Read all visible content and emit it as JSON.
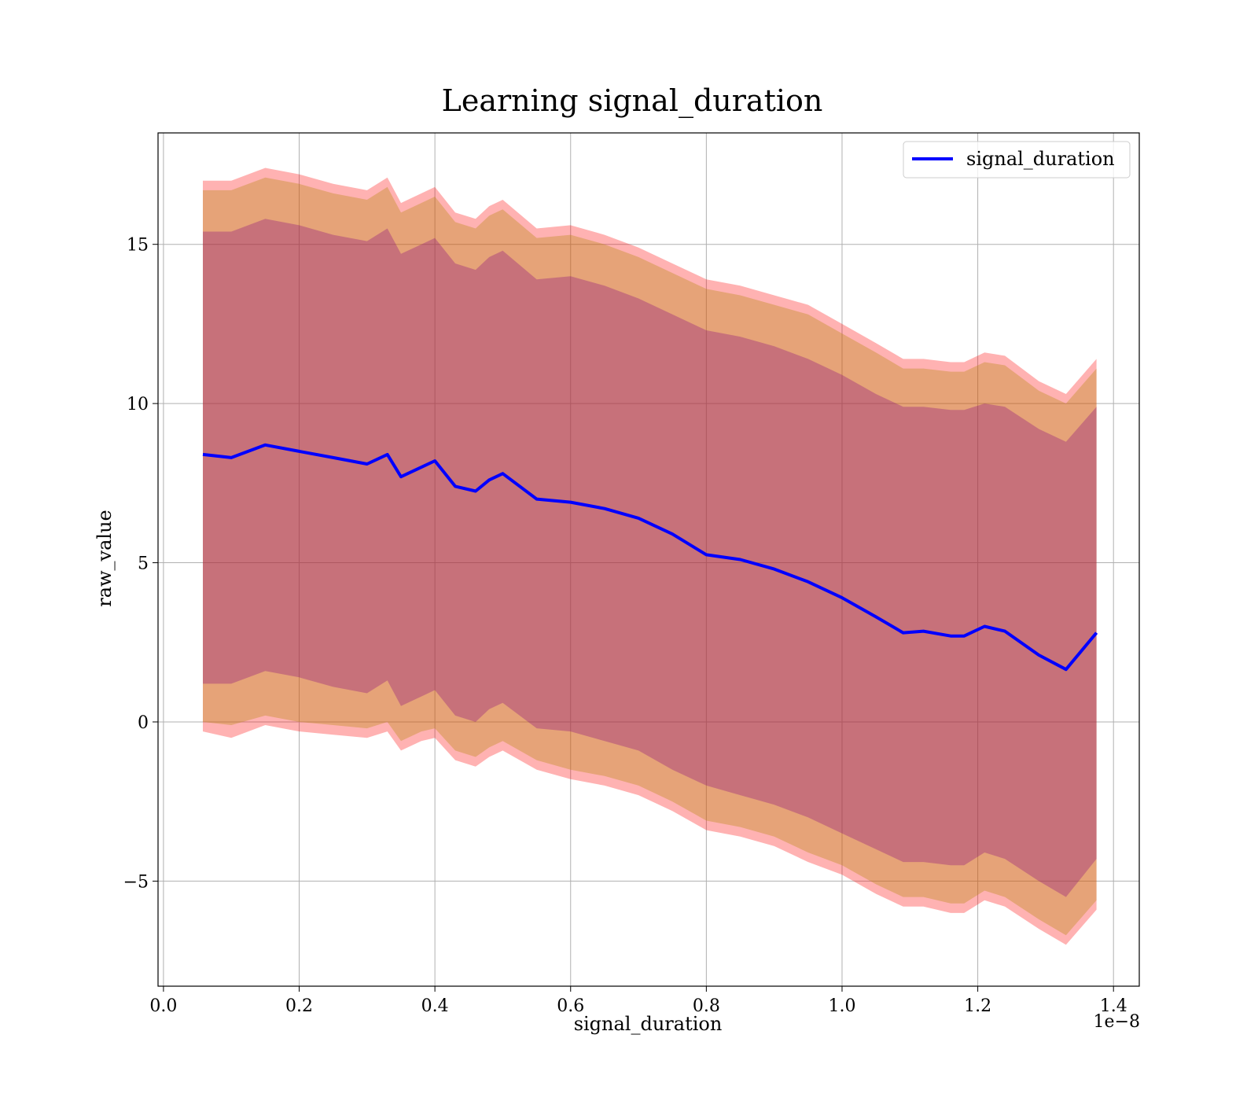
{
  "chart_data": {
    "type": "line",
    "title": "Learning signal_duration",
    "xlabel": "signal_duration",
    "ylabel": "raw_value",
    "x_offset_label": "1e−8",
    "xlim": [
      -0.008,
      1.438
    ],
    "ylim": [
      -8.3,
      18.5
    ],
    "x_ticks": [
      0.0,
      0.2,
      0.4,
      0.6,
      0.8,
      1.0,
      1.2,
      1.4
    ],
    "x_tick_labels": [
      "0.0",
      "0.2",
      "0.4",
      "0.6",
      "0.8",
      "1.0",
      "1.2",
      "1.4"
    ],
    "y_ticks": [
      -5,
      0,
      5,
      10,
      15
    ],
    "y_tick_labels": [
      "−5",
      "0",
      "5",
      "10",
      "15"
    ],
    "grid": true,
    "legend_position": "top-right",
    "colors": {
      "line": "#0000ff",
      "outer_band": "#ff0000",
      "middle_band": "#b8860b",
      "inner_band": "#800080",
      "grid": "#b0b0b0",
      "axes": "#000000"
    },
    "x": [
      0.058,
      0.1,
      0.15,
      0.2,
      0.25,
      0.3,
      0.33,
      0.35,
      0.38,
      0.4,
      0.43,
      0.46,
      0.48,
      0.5,
      0.55,
      0.6,
      0.65,
      0.7,
      0.75,
      0.8,
      0.85,
      0.9,
      0.95,
      1.0,
      1.05,
      1.09,
      1.12,
      1.16,
      1.18,
      1.21,
      1.24,
      1.29,
      1.33,
      1.375
    ],
    "series": [
      {
        "name": "signal_duration",
        "values": [
          8.4,
          8.3,
          8.7,
          8.5,
          8.3,
          8.1,
          8.4,
          7.7,
          8.0,
          8.2,
          7.4,
          7.25,
          7.6,
          7.8,
          7.0,
          6.9,
          6.7,
          6.4,
          5.9,
          5.25,
          5.1,
          4.8,
          4.4,
          3.9,
          3.3,
          2.8,
          2.85,
          2.7,
          2.7,
          3.0,
          2.85,
          2.1,
          1.65,
          2.8
        ]
      }
    ],
    "bands": [
      {
        "level": "outer",
        "lower": [
          -0.3,
          -0.5,
          -0.1,
          -0.3,
          -0.4,
          -0.5,
          -0.3,
          -0.9,
          -0.6,
          -0.5,
          -1.2,
          -1.4,
          -1.1,
          -0.9,
          -1.5,
          -1.8,
          -2.0,
          -2.3,
          -2.8,
          -3.4,
          -3.6,
          -3.9,
          -4.4,
          -4.8,
          -5.4,
          -5.8,
          -5.8,
          -6.0,
          -6.0,
          -5.6,
          -5.8,
          -6.5,
          -7.0,
          -5.9
        ],
        "upper": [
          17.0,
          17.0,
          17.4,
          17.2,
          16.9,
          16.7,
          17.1,
          16.3,
          16.6,
          16.8,
          16.0,
          15.8,
          16.2,
          16.4,
          15.5,
          15.6,
          15.3,
          14.9,
          14.4,
          13.9,
          13.7,
          13.4,
          13.1,
          12.5,
          11.9,
          11.4,
          11.4,
          11.3,
          11.3,
          11.6,
          11.5,
          10.7,
          10.3,
          11.4
        ]
      },
      {
        "level": "middle",
        "lower": [
          0.0,
          -0.1,
          0.2,
          0.0,
          -0.1,
          -0.2,
          0.0,
          -0.6,
          -0.3,
          -0.2,
          -0.9,
          -1.1,
          -0.8,
          -0.6,
          -1.2,
          -1.5,
          -1.7,
          -2.0,
          -2.5,
          -3.1,
          -3.3,
          -3.6,
          -4.1,
          -4.5,
          -5.1,
          -5.5,
          -5.5,
          -5.7,
          -5.7,
          -5.3,
          -5.5,
          -6.2,
          -6.7,
          -5.6
        ],
        "upper": [
          16.7,
          16.7,
          17.1,
          16.9,
          16.6,
          16.4,
          16.8,
          16.0,
          16.3,
          16.5,
          15.7,
          15.5,
          15.9,
          16.1,
          15.2,
          15.3,
          15.0,
          14.6,
          14.1,
          13.6,
          13.4,
          13.1,
          12.8,
          12.2,
          11.6,
          11.1,
          11.1,
          11.0,
          11.0,
          11.3,
          11.2,
          10.4,
          10.0,
          11.1
        ]
      },
      {
        "level": "inner",
        "lower": [
          1.2,
          1.2,
          1.6,
          1.4,
          1.1,
          0.9,
          1.3,
          0.5,
          0.8,
          1.0,
          0.2,
          0.0,
          0.4,
          0.6,
          -0.2,
          -0.3,
          -0.6,
          -0.9,
          -1.5,
          -2.0,
          -2.3,
          -2.6,
          -3.0,
          -3.5,
          -4.0,
          -4.4,
          -4.4,
          -4.5,
          -4.5,
          -4.1,
          -4.3,
          -5.0,
          -5.5,
          -4.3
        ],
        "upper": [
          15.4,
          15.4,
          15.8,
          15.6,
          15.3,
          15.1,
          15.5,
          14.7,
          15.0,
          15.2,
          14.4,
          14.2,
          14.6,
          14.8,
          13.9,
          14.0,
          13.7,
          13.3,
          12.8,
          12.3,
          12.1,
          11.8,
          11.4,
          10.9,
          10.3,
          9.9,
          9.9,
          9.8,
          9.8,
          10.0,
          9.9,
          9.2,
          8.8,
          9.9
        ]
      }
    ]
  }
}
